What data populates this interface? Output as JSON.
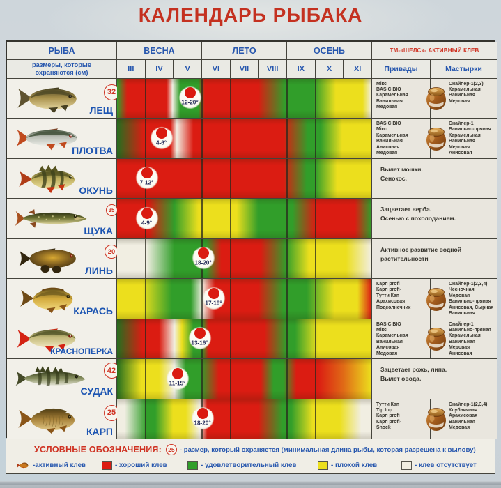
{
  "title": "КАЛЕНДАРЬ РЫБАКА",
  "colors": {
    "title_red": "#c43120",
    "blue_text": "#2757ae",
    "legend_red": "#cf3222",
    "good": "#db1c12",
    "satisfactory": "#319e2a",
    "satisfactory_dark": "#256e1e",
    "poor": "#ecdf1d",
    "none": "#f1eee2",
    "transition_orange": "#e06a16"
  },
  "header": {
    "fish_col": "РЫБА",
    "size_note": "размеры, которые охраняются (см)",
    "seasons": [
      "ВЕСНА",
      "ЛЕТО",
      "ОСЕНЬ"
    ],
    "brand": "ТМ-«ШЕЛС»- АКТИВНЫЙ КЛЕВ",
    "baits_col": "Привады",
    "pastes_col": "Мастырки"
  },
  "chart_data": {
    "type": "heatmap",
    "months": [
      "III",
      "IV",
      "V",
      "VI",
      "VII",
      "VIII",
      "IX",
      "X",
      "XI"
    ],
    "levels": {
      "R": "хороший клев",
      "G": "удовлетворительный клев",
      "Y": "плохой клев",
      "W": "клев отсутствует"
    },
    "rows": [
      {
        "fish": "ЛЕЩ",
        "icon": "bream-fish-icon",
        "protected_size_cm": "32",
        "spawn_temp": "12-20",
        "spawn_pos": 0.287,
        "gradient": [
          [
            "G",
            0
          ],
          [
            "R",
            0.04
          ],
          [
            "R",
            0.195
          ],
          [
            "W",
            0.218
          ],
          [
            "G",
            0.248
          ],
          [
            "G",
            0.32
          ],
          [
            "R",
            0.345
          ],
          [
            "R",
            0.555
          ],
          [
            "G",
            0.66
          ],
          [
            "G",
            0.775
          ],
          [
            "Y",
            0.86
          ],
          [
            "Y",
            0.965
          ],
          [
            "W",
            1
          ]
        ],
        "baits": [
          "Мікс",
          "BASIC BIO",
          "Карамельная",
          "Ванильная",
          "Медовая"
        ],
        "pastes": [
          "Снайпер-1(2,3)",
          "Карамельная",
          "Ванильная",
          "Медовая"
        ],
        "note": null,
        "jar": true
      },
      {
        "fish": "ПЛОТВА",
        "icon": "roach-fish-icon",
        "protected_size_cm": null,
        "spawn_temp": "4-6",
        "spawn_pos": 0.175,
        "gradient": [
          [
            "DG",
            0
          ],
          [
            "R",
            0.105
          ],
          [
            "R",
            0.21
          ],
          [
            "W",
            0.235
          ],
          [
            "R",
            0.3
          ],
          [
            "R",
            0.655
          ],
          [
            "G",
            0.75
          ],
          [
            "G",
            0.8
          ],
          [
            "Y",
            0.885
          ],
          [
            "Y",
            1
          ]
        ],
        "baits": [
          "BASIC BIO",
          "Мікс",
          "Карамельная",
          "Ванильная",
          "Анисовая",
          "Медовая"
        ],
        "pastes": [
          "Снайпер-1",
          "Ванильно-пряная",
          "Карамельная",
          "Ванильная",
          "Медовая",
          "Анисовая"
        ],
        "note": null,
        "jar": true
      },
      {
        "fish": "ОКУНЬ",
        "icon": "perch-fish-icon",
        "protected_size_cm": null,
        "spawn_temp": "7-12",
        "spawn_pos": 0.117,
        "gradient": [
          [
            "R",
            0
          ],
          [
            "R",
            0.655
          ],
          [
            "G",
            0.745
          ],
          [
            "G",
            0.78
          ],
          [
            "Y",
            0.865
          ],
          [
            "Y",
            1
          ]
        ],
        "baits": null,
        "pastes": null,
        "note": [
          "Вылет мошки.",
          "Сенокос."
        ],
        "jar": false
      },
      {
        "fish": "ЩУКА",
        "icon": "pike-fish-icon",
        "protected_size_cm": "35",
        "spawn_temp": "4-9",
        "spawn_pos": 0.117,
        "gradient": [
          [
            "R",
            0
          ],
          [
            "R",
            0.125
          ],
          [
            "G",
            0.225
          ],
          [
            "Y",
            0.32
          ],
          [
            "Y",
            0.47
          ],
          [
            "G",
            0.555
          ],
          [
            "G",
            0.69
          ],
          [
            "R",
            0.78
          ],
          [
            "R",
            0.935
          ],
          [
            "G",
            1
          ]
        ],
        "baits": null,
        "pastes": null,
        "note": [
          "Зацветает верба.",
          "Осенью с похолоданием."
        ],
        "jar": false
      },
      {
        "fish": "ЛИНЬ",
        "icon": "tench-fish-icon",
        "protected_size_cm": "20",
        "spawn_temp": "18-20",
        "spawn_pos": 0.34,
        "gradient": [
          [
            "W",
            0
          ],
          [
            "W",
            0.115
          ],
          [
            "G",
            0.225
          ],
          [
            "G",
            0.35
          ],
          [
            "R",
            0.41
          ],
          [
            "R",
            0.565
          ],
          [
            "G",
            0.665
          ],
          [
            "Y",
            0.755
          ],
          [
            "Y",
            0.9
          ],
          [
            "W",
            1
          ]
        ],
        "baits": null,
        "pastes": null,
        "note": [
          "Активное развитие водной",
          "растительности"
        ],
        "jar": false
      },
      {
        "fish": "КАРАСЬ",
        "icon": "crucian-fish-icon",
        "protected_size_cm": null,
        "spawn_temp": "17-18",
        "spawn_pos": 0.38,
        "gradient": [
          [
            "Y",
            0
          ],
          [
            "Y",
            0.1
          ],
          [
            "G",
            0.215
          ],
          [
            "G",
            0.29
          ],
          [
            "W",
            0.335
          ],
          [
            "R",
            0.385
          ],
          [
            "R",
            0.555
          ],
          [
            "G",
            0.655
          ],
          [
            "G",
            0.745
          ],
          [
            "Y",
            0.855
          ],
          [
            "Y",
            0.945
          ],
          [
            "R",
            1
          ]
        ],
        "baits": [
          "Карп profi",
          "Карп profi-",
          "Тутти Кап",
          "Арахисовая",
          "Подсолнечник"
        ],
        "pastes": [
          "Снайпер-1(2,3,4)",
          "Чесночная",
          "Медовая",
          "Ванильно-пряная",
          "Анисовая, Сырная",
          "Ванильная"
        ],
        "note": null,
        "jar": true
      },
      {
        "fish": "КРАСНОПЕРКА",
        "icon": "rudd-fish-icon",
        "protected_size_cm": null,
        "spawn_temp": "13-16",
        "spawn_pos": 0.326,
        "gradient": [
          [
            "DG",
            0
          ],
          [
            "R",
            0.1
          ],
          [
            "R",
            0.165
          ],
          [
            "W",
            0.225
          ],
          [
            "Y",
            0.255
          ],
          [
            "G",
            0.3
          ],
          [
            "G",
            0.335
          ],
          [
            "R",
            0.36
          ],
          [
            "R",
            0.58
          ],
          [
            "G",
            0.665
          ],
          [
            "G",
            0.7
          ],
          [
            "Y",
            0.79
          ],
          [
            "Y",
            1
          ]
        ],
        "baits": [
          "BASIC BIO",
          "Мікс",
          "Карамельная",
          "Ванильная",
          "Анисовая",
          "Медовая"
        ],
        "pastes": [
          "Снайпер-1",
          "Ванильно-пряная",
          "Карамельная",
          "Ванильная",
          "Медовая",
          "Анисовая"
        ],
        "note": null,
        "jar": true
      },
      {
        "fish": "СУДАК",
        "icon": "zander-fish-icon",
        "protected_size_cm": "42",
        "spawn_temp": "11-15",
        "spawn_pos": 0.239,
        "gradient": [
          [
            "DG",
            0
          ],
          [
            "Y",
            0.095
          ],
          [
            "Y",
            0.165
          ],
          [
            "W",
            0.225
          ],
          [
            "G",
            0.27
          ],
          [
            "G",
            0.33
          ],
          [
            "R",
            0.4
          ],
          [
            "R",
            0.565
          ],
          [
            "G",
            0.615
          ],
          [
            "G",
            0.655
          ],
          [
            "R",
            0.705
          ],
          [
            "R",
            0.79
          ],
          [
            "O",
            0.89
          ],
          [
            "Y",
            1
          ]
        ],
        "baits": null,
        "pastes": null,
        "note": [
          "Зацветает рожь, липа.",
          "Вылет овода."
        ],
        "jar": false
      },
      {
        "fish": "КАРП",
        "icon": "carp-fish-icon",
        "protected_size_cm": "25",
        "spawn_temp": "18-20",
        "spawn_pos": 0.335,
        "gradient": [
          [
            "W",
            0
          ],
          [
            "W",
            0.03
          ],
          [
            "G",
            0.115
          ],
          [
            "G",
            0.15
          ],
          [
            "Y",
            0.22
          ],
          [
            "Y",
            0.27
          ],
          [
            "W",
            0.325
          ],
          [
            "R",
            0.355
          ],
          [
            "R",
            0.555
          ],
          [
            "G",
            0.65
          ],
          [
            "G",
            0.685
          ],
          [
            "Y",
            0.77
          ],
          [
            "Y",
            0.875
          ],
          [
            "W",
            0.96
          ],
          [
            "W",
            1
          ]
        ],
        "baits": [
          "Тутти Кап",
          "Тip top",
          "Карп profi",
          "Карп profi-",
          "Shock"
        ],
        "pastes": [
          "Снайпер-1(2,3,4)",
          "Клубничная",
          "Арахисовая",
          "Ванильная",
          "Медовая"
        ],
        "note": null,
        "jar": true
      }
    ]
  },
  "legend": {
    "heading": "УСЛОВНЫЕ ОБОЗНАЧЕНИЯ:",
    "size_badge": "25",
    "size_text": "- размер, который охраняется (минимальная длина рыбы, которая разрешена к вылову)",
    "items": [
      {
        "icon": "fish",
        "label": "-активный клев"
      },
      {
        "icon": "R",
        "label": "- хороший клев"
      },
      {
        "icon": "G",
        "label": "- удовлетворительный клев"
      },
      {
        "icon": "Y",
        "label": "- плохой клев"
      },
      {
        "icon": "W",
        "label": "- клев отсутствует"
      }
    ]
  }
}
